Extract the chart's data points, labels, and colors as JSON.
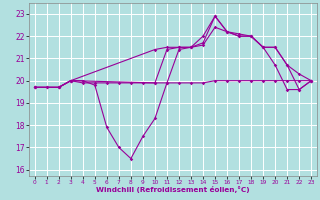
{
  "xlabel": "Windchill (Refroidissement éolien,°C)",
  "background_color": "#b2e0e0",
  "grid_color": "#ffffff",
  "line_color": "#990099",
  "label_color": "#990099",
  "xlim": [
    -0.5,
    23.5
  ],
  "ylim": [
    15.7,
    23.5
  ],
  "yticks": [
    16,
    17,
    18,
    19,
    20,
    21,
    22,
    23
  ],
  "xticks": [
    0,
    1,
    2,
    3,
    4,
    5,
    6,
    7,
    8,
    9,
    10,
    11,
    12,
    13,
    14,
    15,
    16,
    17,
    18,
    19,
    20,
    21,
    22,
    23
  ],
  "line1_x": [
    0,
    1,
    2,
    3,
    4,
    5,
    6,
    7,
    8,
    9,
    10,
    11,
    12,
    13,
    14,
    15,
    16,
    17,
    18,
    19,
    20,
    21,
    22,
    23
  ],
  "line1_y": [
    19.7,
    19.7,
    19.7,
    20.0,
    19.9,
    19.9,
    19.9,
    19.9,
    19.9,
    19.9,
    19.9,
    19.9,
    19.9,
    19.9,
    19.9,
    20.0,
    20.0,
    20.0,
    20.0,
    20.0,
    20.0,
    20.0,
    20.0,
    20.0
  ],
  "line2_x": [
    0,
    1,
    2,
    3,
    4,
    5,
    6,
    7,
    8,
    9,
    10,
    11,
    12,
    13,
    14,
    15,
    16,
    17,
    18,
    19,
    20,
    21,
    22,
    23
  ],
  "line2_y": [
    19.7,
    19.7,
    19.7,
    20.0,
    20.0,
    19.8,
    17.9,
    17.0,
    16.5,
    17.5,
    18.3,
    19.9,
    21.4,
    21.5,
    22.0,
    22.9,
    22.2,
    22.0,
    22.0,
    21.5,
    20.7,
    19.6,
    19.6,
    20.0
  ],
  "line3_x": [
    0,
    2,
    3,
    10,
    11,
    12,
    13,
    14,
    15,
    16,
    17,
    18,
    19,
    20,
    21,
    22,
    23
  ],
  "line3_y": [
    19.7,
    19.7,
    20.0,
    21.4,
    21.5,
    21.5,
    21.5,
    21.6,
    22.4,
    22.2,
    22.0,
    22.0,
    21.5,
    21.5,
    20.7,
    20.3,
    20.0
  ],
  "line4_x": [
    0,
    2,
    3,
    10,
    11,
    12,
    13,
    14,
    15,
    16,
    17,
    18,
    19,
    20,
    21,
    22,
    23
  ],
  "line4_y": [
    19.7,
    19.7,
    20.0,
    19.9,
    21.4,
    21.5,
    21.5,
    21.7,
    22.9,
    22.2,
    22.1,
    22.0,
    21.5,
    21.5,
    20.7,
    19.6,
    20.0
  ]
}
